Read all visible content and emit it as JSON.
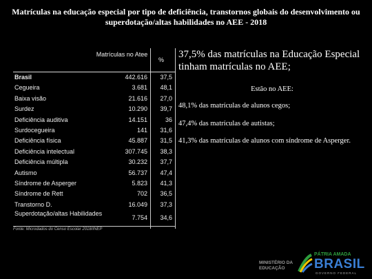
{
  "title": "Matrículas na educação especial por tipo de deficiência, transtornos globais do desenvolvimento ou superdotação/altas habilidades no AEE - 2018",
  "table": {
    "header_count": "Matrículas no Atee",
    "header_pct": "%",
    "rows": [
      {
        "label": "Brasil",
        "count": "442.616",
        "pct": "37,5"
      },
      {
        "label": "Cegueira",
        "count": "3.681",
        "pct": "48,1"
      },
      {
        "label": "Baixa visão",
        "count": "21.616",
        "pct": "27,0"
      },
      {
        "label": "Surdez",
        "count": "10.290",
        "pct": "39,7"
      },
      {
        "label": "Deficiência auditiva",
        "count": "14.151",
        "pct": "36"
      },
      {
        "label": "Surdocegueira",
        "count": "141",
        "pct": "31,6"
      },
      {
        "label": "Deficiência física",
        "count": "45.887",
        "pct": "31,5"
      },
      {
        "label": "Deficiência intelectual",
        "count": "307.745",
        "pct": "38,3"
      },
      {
        "label": "Deficiência múltipla",
        "count": "30.232",
        "pct": "37,7"
      },
      {
        "label": "Autismo",
        "count": "56.737",
        "pct": "47,4"
      },
      {
        "label": "Síndrome de Asperger",
        "count": "5.823",
        "pct": "41,3"
      },
      {
        "label": "Síndrome de Rett",
        "count": "702",
        "pct": "36,5"
      },
      {
        "label": "Transtorno D.",
        "count": "16.049",
        "pct": "37,3"
      },
      {
        "label": "Superdotação/altas Habilidades",
        "count": "7.754",
        "pct": "34,6"
      }
    ],
    "source": "Fonte: Microdados do Censo Escolar 2018/INEP"
  },
  "right": {
    "headline": "37,5% das matrículas na Educação Especial tinham matrículas no AEE;",
    "estao": "Estão no AEE:",
    "items": [
      "48,1% das matrículas de alunos cegos;",
      "47,4% das matrículas de autistas;",
      "41,3% das matrículas de alunos com síndrome de Asperger."
    ]
  },
  "logos": {
    "mec_line1": "MINISTÉRIO DA",
    "mec_line2": "EDUCAÇÃO",
    "patria": "PÁTRIA AMADA",
    "brasil": "BRASIL",
    "governo": "GOVERNO FEDERAL",
    "colors": {
      "green": "#2e9e3e",
      "blue": "#3a7fd5",
      "yellow": "#f2c500"
    }
  }
}
